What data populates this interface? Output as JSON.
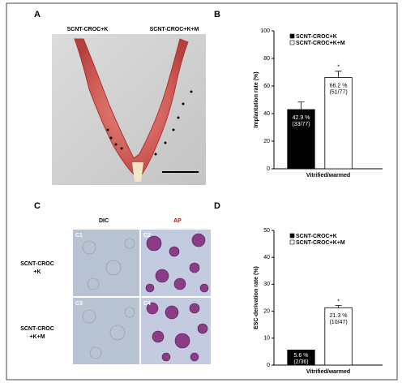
{
  "panels": {
    "a": {
      "letter": "A",
      "labels": [
        "SCNT-CROC+K",
        "SCNT-CROC+K+M"
      ]
    },
    "b": {
      "letter": "B"
    },
    "c": {
      "letter": "C",
      "columns": [
        "DIC",
        "AP"
      ],
      "rows": [
        [
          "SCNT-CROC",
          "+K"
        ],
        [
          "SCNT-CROC",
          "+K+M"
        ]
      ],
      "tiles": [
        "C1",
        "C2",
        "C3",
        "C4"
      ]
    },
    "d": {
      "letter": "D"
    }
  },
  "chart_data": [
    {
      "type": "bar",
      "categories": [
        "Vitrified/warmed"
      ],
      "y_label": "Implantation rate (%)",
      "ylim": [
        0,
        100
      ],
      "yticks": [
        0,
        20,
        40,
        60,
        80,
        100
      ],
      "series": [
        {
          "name": "SCNT-CROC+K",
          "color": "#000000",
          "values": [
            42.9
          ],
          "value_labels": [
            "42.9 %"
          ],
          "counts": [
            "(33/77)"
          ],
          "errors": [
            5.5
          ]
        },
        {
          "name": "SCNT-CROC+K+M",
          "color": "#ffffff",
          "values": [
            66.2
          ],
          "value_labels": [
            "66.2 %"
          ],
          "counts": [
            "(51/77)"
          ],
          "errors": [
            4.5
          ],
          "annotation": "*"
        }
      ]
    },
    {
      "type": "bar",
      "categories": [
        "Vitrified/warmed"
      ],
      "y_label": "ESC-derivation rate (%)",
      "ylim": [
        0,
        50
      ],
      "yticks": [
        0,
        10,
        20,
        30,
        40,
        50
      ],
      "series": [
        {
          "name": "SCNT-CROC+K",
          "color": "#000000",
          "values": [
            5.6
          ],
          "value_labels": [
            "5.6 %"
          ],
          "counts": [
            "(2/36)"
          ]
        },
        {
          "name": "SCNT-CROC+K+M",
          "color": "#ffffff",
          "values": [
            21.3
          ],
          "value_labels": [
            "21.3 %"
          ],
          "counts": [
            "(10/47)"
          ],
          "errors": [
            0.8
          ],
          "annotation": "*"
        }
      ]
    }
  ]
}
